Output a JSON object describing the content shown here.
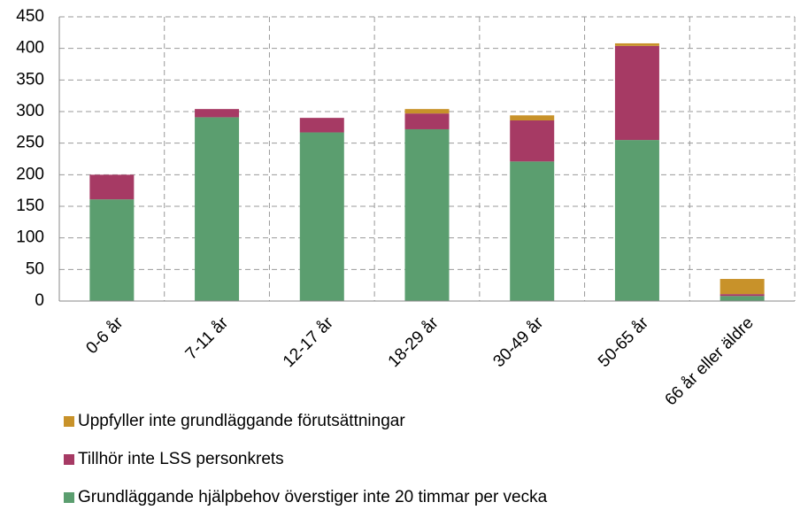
{
  "chart_data": {
    "type": "stacked_bar",
    "categories": [
      "0-6 år",
      "7-11 år",
      "12-17 år",
      "18-29 år",
      "30-49 år",
      "50-65 år",
      "66 år eller äldre"
    ],
    "series": [
      {
        "name": "Grundläggande hjälpbehov överstiger inte 20 timmar per vecka",
        "color": "#5b9e6f",
        "values": [
          161,
          291,
          267,
          272,
          221,
          255,
          8
        ]
      },
      {
        "name": "Tillhör inte LSS personkrets",
        "color": "#a63a64",
        "values": [
          39,
          13,
          23,
          25,
          65,
          149,
          3
        ]
      },
      {
        "name": "Uppfyller inte grundläggande förutsättningar",
        "color": "#c8922a",
        "values": [
          0,
          0,
          0,
          7,
          8,
          4,
          24
        ]
      }
    ],
    "ylim": [
      0,
      450
    ],
    "yticks": [
      0,
      50,
      100,
      150,
      200,
      250,
      300,
      350,
      400,
      450
    ],
    "grid": true
  }
}
